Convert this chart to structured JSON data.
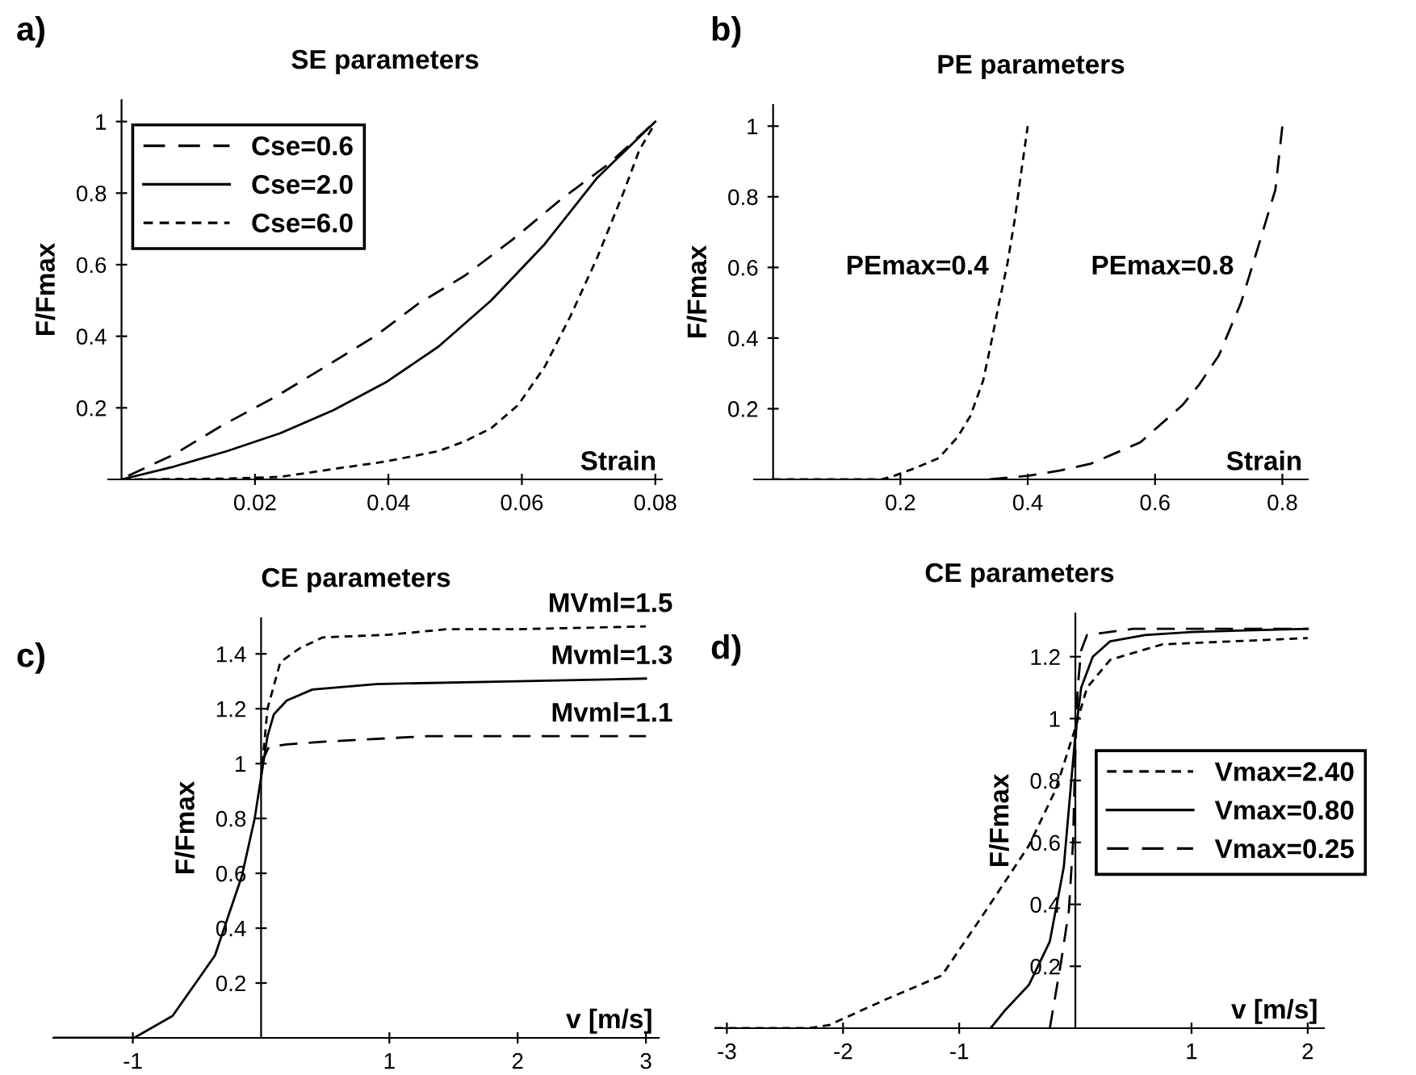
{
  "chart_data": [
    {
      "type": "line",
      "title": "SE parameters",
      "xlabel": "Strain",
      "ylabel": "F/Fmax",
      "annotations": [
        "a)"
      ],
      "xlim": [
        -0.002,
        0.081
      ],
      "ylim": [
        0,
        1.06
      ],
      "xticks": [
        0.02,
        0.04,
        0.06,
        0.08
      ],
      "yticks": [
        0.2,
        0.4,
        0.6,
        0.8,
        1
      ],
      "legend": "top left",
      "grid": false,
      "series": [
        {
          "name": "Cse=0.6",
          "color": "#000000",
          "line_style": "dashed",
          "x": [
            0.001,
            0.0079,
            0.015,
            0.023,
            0.0301,
            0.038,
            0.0444,
            0.0515,
            0.0586,
            0.0657,
            0.0729,
            0.08
          ],
          "values": [
            0.01,
            0.07,
            0.15,
            0.23,
            0.31,
            0.4,
            0.49,
            0.57,
            0.67,
            0.78,
            0.88,
            1
          ]
        },
        {
          "name": "Cse=2.0",
          "color": "#000000",
          "line_style": "solid",
          "x": [
            0,
            0.0079,
            0.0158,
            0.0238,
            0.0317,
            0.0396,
            0.0475,
            0.0554,
            0.0634,
            0.0713,
            0.08
          ],
          "values": [
            0,
            0.036,
            0.079,
            0.129,
            0.193,
            0.271,
            0.371,
            0.5,
            0.657,
            0.843,
            1
          ]
        },
        {
          "name": "Cse=6.0",
          "color": "#000000",
          "line_style": "dashed",
          "x": [
            0.002,
            0.015,
            0.0238,
            0.0317,
            0.0396,
            0.0475,
            0.0515,
            0.0554,
            0.0594,
            0.0634,
            0.0673,
            0.0713,
            0.0752,
            0.0776,
            0.0798
          ],
          "values": [
            0,
            0.002,
            0.007,
            0.029,
            0.05,
            0.079,
            0.107,
            0.143,
            0.207,
            0.314,
            0.457,
            0.62,
            0.8,
            0.92,
            0.99
          ]
        }
      ]
    },
    {
      "type": "line",
      "title": "PE parameters",
      "xlabel": "Strain",
      "ylabel": "F/Fmax",
      "annotations": [
        "b)"
      ],
      "xlim": [
        -0.03,
        0.84
      ],
      "ylim": [
        0,
        1.06
      ],
      "xticks": [
        0.2,
        0.4,
        0.6,
        0.8
      ],
      "yticks": [
        0.2,
        0.4,
        0.6,
        0.8,
        1
      ],
      "legend": false,
      "grid": false,
      "series": [
        {
          "name": "PEmax=0.4",
          "color": "#000000",
          "line_style": "dashed",
          "x": [
            0,
            0.17,
            0.19,
            0.22,
            0.26,
            0.29,
            0.31,
            0.33,
            0.343,
            0.355,
            0.368,
            0.38,
            0.389,
            0.4
          ],
          "values": [
            0,
            0,
            0.01,
            0.03,
            0.06,
            0.12,
            0.18,
            0.28,
            0.39,
            0.5,
            0.61,
            0.74,
            0.86,
            1
          ]
        },
        {
          "name": "PEmax=0.8",
          "color": "#000000",
          "line_style": "dashed",
          "x": [
            0.34,
            0.4,
            0.45,
            0.5,
            0.577,
            0.643,
            0.67,
            0.7,
            0.735,
            0.764,
            0.789,
            0.8
          ],
          "values": [
            0,
            0.01,
            0.025,
            0.045,
            0.105,
            0.21,
            0.27,
            0.35,
            0.5,
            0.67,
            0.82,
            1
          ]
        }
      ]
    },
    {
      "type": "line",
      "title": "CE parameters",
      "xlabel": "v [m/s]",
      "ylabel": "F/Fmax",
      "annotations": [
        "c)"
      ],
      "xlim": [
        -1.62,
        3.1
      ],
      "ylim": [
        0,
        1.53
      ],
      "xticks": [
        -1,
        1,
        2,
        3
      ],
      "yticks": [
        0.2,
        0.4,
        0.6,
        0.8,
        1,
        1.2,
        1.4
      ],
      "legend": false,
      "grid": false,
      "series": [
        {
          "name": "MVml=1.5",
          "color": "#000000",
          "line_style": "dashed",
          "x": [
            0,
            0.05,
            0.15,
            0.3,
            0.48,
            1,
            1.45,
            2,
            3
          ],
          "values": [
            0.95,
            1.2,
            1.37,
            1.42,
            1.46,
            1.47,
            1.49,
            1.49,
            1.5
          ]
        },
        {
          "name": "Mvml=1.3",
          "color": "#000000",
          "line_style": "solid",
          "x": [
            -1.62,
            -0.99,
            -0.69,
            -0.36,
            -0.15,
            -0.05,
            0,
            0.05,
            0.1,
            0.2,
            0.4,
            0.9,
            2,
            3
          ],
          "values": [
            0,
            0,
            0.08,
            0.3,
            0.59,
            0.8,
            0.95,
            1.1,
            1.18,
            1.23,
            1.27,
            1.29,
            1.3,
            1.31
          ]
        },
        {
          "name": "Mvml=1.1",
          "color": "#000000",
          "line_style": "dashed",
          "x": [
            0,
            0.06,
            0.2,
            0.5,
            1.3,
            2,
            3
          ],
          "values": [
            1,
            1.06,
            1.07,
            1.08,
            1.1,
            1.1,
            1.1
          ]
        }
      ]
    },
    {
      "type": "line",
      "title": "CE parameters",
      "xlabel": "v [m/s]",
      "ylabel": "F/Fmax",
      "annotations": [
        "d)"
      ],
      "xlim": [
        -3.1,
        2.14
      ],
      "ylim": [
        0,
        1.34
      ],
      "xticks": [
        -3,
        -2,
        -1,
        1,
        2
      ],
      "yticks": [
        0.2,
        0.4,
        0.6,
        0.8,
        1,
        1.2
      ],
      "legend": "right",
      "grid": false,
      "series": [
        {
          "name": "Vmax=2.40",
          "color": "#000000",
          "line_style": "dashed",
          "x": [
            -3.1,
            -2.3,
            -2.12,
            -1.65,
            -1.15,
            -0.77,
            -0.4,
            -0.17,
            0,
            0.1,
            0.3,
            0.75,
            2
          ],
          "values": [
            0,
            0,
            0.01,
            0.09,
            0.17,
            0.38,
            0.59,
            0.77,
            0.97,
            1.1,
            1.19,
            1.24,
            1.26
          ]
        },
        {
          "name": "Vmax=0.80",
          "color": "#000000",
          "line_style": "solid",
          "x": [
            -0.73,
            -0.6,
            -0.4,
            -0.22,
            -0.1,
            0,
            0.05,
            0.15,
            0.3,
            0.6,
            1,
            2
          ],
          "values": [
            0,
            0.06,
            0.14,
            0.28,
            0.52,
            0.95,
            1.1,
            1.2,
            1.25,
            1.27,
            1.28,
            1.29
          ]
        },
        {
          "name": "Vmax=0.25",
          "color": "#000000",
          "line_style": "dashed",
          "x": [
            -0.22,
            -0.125,
            -0.056,
            -0.02,
            0,
            0.02,
            0.05,
            0.1,
            0.5,
            2
          ],
          "values": [
            0,
            0.21,
            0.38,
            0.6,
            0.9,
            1.1,
            1.22,
            1.27,
            1.29,
            1.29
          ]
        }
      ]
    }
  ]
}
